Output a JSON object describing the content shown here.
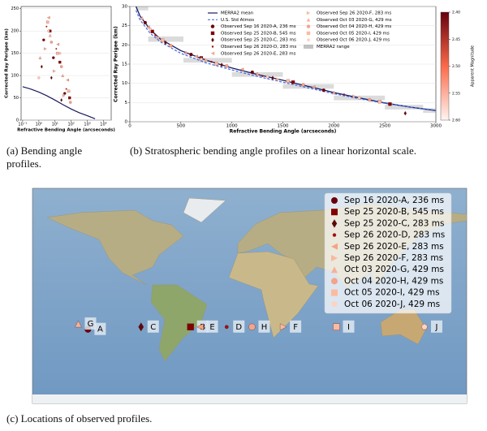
{
  "chart_data": [
    {
      "type": "line",
      "xscale": "log",
      "grid": true,
      "xlabel": "Refractive Bending Angle (arcseconds)",
      "ylabel": "Corrected Ray Perigee (km)",
      "xlim": [
        0.08,
        30000
      ],
      "ylim": [
        0,
        255
      ],
      "xticks": [
        {
          "value": 0.1,
          "label": "10⁻¹"
        },
        {
          "value": 1,
          "label": "10⁰"
        },
        {
          "value": 10,
          "label": "10¹"
        },
        {
          "value": 100,
          "label": "10²"
        },
        {
          "value": 1000,
          "label": "10³"
        },
        {
          "value": 10000,
          "label": "10⁴"
        }
      ],
      "yticks": [
        0,
        50,
        100,
        150,
        200,
        250
      ],
      "series": [
        {
          "kind": "line",
          "color": "#1a1a5e",
          "x": [
            0.1,
            0.3,
            1,
            3,
            10,
            30,
            100,
            300,
            1000,
            3000
          ],
          "values": [
            75,
            70,
            63,
            55,
            45,
            35,
            25,
            17,
            10,
            3
          ]
        },
        {
          "kind": "scatter",
          "marker": "circle",
          "color": "#67000d",
          "x": [
            2,
            8,
            40
          ],
          "values": [
            180,
            140,
            60
          ]
        },
        {
          "kind": "scatter",
          "marker": "square",
          "color": "#800000",
          "x": [
            5,
            20,
            80
          ],
          "values": [
            200,
            130,
            50
          ]
        },
        {
          "kind": "scatter",
          "marker": "diamond",
          "color": "#5c0a0a",
          "x": [
            1.5,
            6,
            25
          ],
          "values": [
            120,
            95,
            45
          ]
        },
        {
          "kind": "scatter",
          "marker": "point",
          "color": "#a01010",
          "x": [
            3,
            12,
            50
          ],
          "values": [
            210,
            160,
            70
          ]
        },
        {
          "kind": "scatter",
          "marker": "tri-left",
          "color": "#f4a582",
          "x": [
            4,
            15,
            60
          ],
          "values": [
            230,
            170,
            90
          ]
        },
        {
          "kind": "scatter",
          "marker": "tri-right",
          "color": "#f9b99d",
          "x": [
            2.5,
            9,
            35
          ],
          "values": [
            160,
            110,
            55
          ]
        },
        {
          "kind": "scatter",
          "marker": "tri-up",
          "color": "#f6b199",
          "x": [
            1.2,
            5,
            30
          ],
          "values": [
            140,
            190,
            100
          ]
        },
        {
          "kind": "scatter",
          "marker": "circle",
          "color": "#f3a48a",
          "x": [
            6,
            25,
            90
          ],
          "values": [
            175,
            120,
            40
          ]
        },
        {
          "kind": "scatter",
          "marker": "square",
          "color": "#fcbba1",
          "x": [
            3.5,
            14,
            70
          ],
          "values": [
            220,
            150,
            65
          ]
        },
        {
          "kind": "scatter",
          "marker": "pentagon",
          "color": "#fdd3c1",
          "x": [
            1,
            4,
            20
          ],
          "values": [
            95,
            200,
            150
          ]
        }
      ]
    },
    {
      "type": "line",
      "grid": true,
      "legend": "upper right",
      "xlabel": "Refractive Bending Angle (arcseconds)",
      "ylabel": "Corrected Ray Perigee (km)",
      "xlim": [
        0,
        3000
      ],
      "ylim": [
        0,
        30
      ],
      "xticks": [
        0,
        500,
        1000,
        1500,
        2000,
        2500,
        3000
      ],
      "yticks": [
        0,
        5,
        10,
        15,
        20,
        25,
        30
      ],
      "series": [
        {
          "name": "MERRA2 mean",
          "kind": "line",
          "color": "#1a1a5e",
          "x": [
            60,
            100,
            200,
            300,
            500,
            750,
            1000,
            1250,
            1500,
            1750,
            2000,
            2250,
            2500,
            2750,
            3000
          ],
          "values": [
            30,
            27.5,
            24,
            21.5,
            18.5,
            16,
            14,
            12.3,
            10.8,
            9.2,
            7.6,
            6.2,
            4.9,
            3.8,
            2.9
          ]
        },
        {
          "name": "U.S. Std Atmos",
          "kind": "line",
          "dash": true,
          "color": "#4a6fe3",
          "x": [
            60,
            100,
            200,
            300,
            500,
            750,
            1000,
            1250,
            1500,
            1750,
            2000,
            2250,
            2500,
            2750,
            3000
          ],
          "values": [
            29,
            26.5,
            23,
            20.8,
            17.8,
            15.3,
            13.5,
            11.8,
            10.3,
            8.8,
            7.3,
            6,
            4.8,
            3.8,
            3
          ]
        },
        {
          "name": "Observed Sep 16 2020-A, 236 ms",
          "kind": "scatter",
          "marker": "circle",
          "color": "#67000d",
          "x": [
            150,
            600,
            1200,
            1900
          ],
          "values": [
            25.8,
            17.5,
            12.9,
            8.2
          ]
        },
        {
          "name": "Observed Sep 25 2020-B, 545 ms",
          "kind": "scatter",
          "marker": "square",
          "color": "#800000",
          "x": [
            220,
            700,
            1600,
            2550
          ],
          "values": [
            23.5,
            16.6,
            10.3,
            4.6
          ]
        },
        {
          "name": "Observed Sep 25 2020-C, 283 ms",
          "kind": "scatter",
          "marker": "diamond",
          "color": "#5c0a0a",
          "x": [
            350,
            900,
            1400,
            2700
          ],
          "values": [
            20.6,
            14.8,
            11.4,
            2.2
          ]
        },
        {
          "name": "Observed Sep 26 2020-D, 283 ms",
          "kind": "scatter",
          "marker": "point",
          "color": "#a01010",
          "x": [
            250,
            800,
            1300,
            2100
          ],
          "values": [
            22.5,
            15.6,
            11.9,
            7.1
          ]
        },
        {
          "name": "Observed Sep 26 2020-E, 283 ms",
          "kind": "scatter",
          "marker": "tri-left",
          "color": "#f4a582",
          "x": [
            180,
            650,
            1100,
            1800
          ],
          "values": [
            24.6,
            17,
            13.6,
            9
          ]
        },
        {
          "name": "Observed Sep 26 2020-F, 283 ms",
          "kind": "scatter",
          "marker": "tri-right",
          "color": "#f9b99d",
          "x": [
            280,
            750,
            1450,
            2200
          ],
          "values": [
            21.9,
            16,
            11,
            6.6
          ]
        },
        {
          "name": "Observed Oct 03 2020-G, 429 ms",
          "kind": "scatter",
          "marker": "tri-up",
          "color": "#f6b199",
          "x": [
            120,
            550,
            1250,
            2000
          ],
          "values": [
            27,
            18,
            12.5,
            7.6
          ]
        },
        {
          "name": "Observed Oct 04 2020-H, 429 ms",
          "kind": "scatter",
          "marker": "circle",
          "color": "#f3a48a",
          "x": [
            400,
            950,
            1700,
            2350
          ],
          "values": [
            19.8,
            14.5,
            9.6,
            5.7
          ]
        },
        {
          "name": "Observed Oct 05 2020-I, 429 ms",
          "kind": "scatter",
          "marker": "square",
          "color": "#fcbba1",
          "x": [
            320,
            850,
            1550,
            2450
          ],
          "values": [
            21.2,
            15.1,
            10.6,
            5.2
          ]
        },
        {
          "name": "Observed Oct 06 2020-J, 429 ms",
          "kind": "scatter",
          "marker": "pentagon",
          "color": "#fdd3c1",
          "x": [
            200,
            700,
            1350,
            2250
          ],
          "values": [
            24.1,
            16.3,
            11.7,
            6.2
          ]
        },
        {
          "name": "MERRA2 range",
          "kind": "band",
          "color": "#999999",
          "x": [
            60,
            300,
            750,
            1250,
            1750,
            2250,
            2750,
            3000
          ],
          "lower": [
            29,
            20.8,
            15.4,
            11.7,
            8.6,
            5.6,
            3.2,
            2.3
          ],
          "upper": [
            30,
            22.2,
            16.6,
            12.9,
            9.8,
            6.8,
            4.4,
            3.5
          ]
        }
      ],
      "colorbar": {
        "title": "Apparent Magnitude",
        "colors": [
          "#67000d",
          "#fb6a4a",
          "#fff5f0"
        ],
        "lim": [
          2.4,
          2.6
        ],
        "ticks": [
          {
            "value": 2.4,
            "label": "2.40"
          },
          {
            "value": 2.45,
            "label": "2.45"
          },
          {
            "value": 2.5,
            "label": "2.50"
          },
          {
            "value": 2.55,
            "label": "2.55"
          },
          {
            "value": 2.6,
            "label": "2.60"
          }
        ]
      }
    }
  ],
  "captions": {
    "a": "(a) Bending angle profiles.",
    "b": "(b) Stratospheric bending angle profiles on a linear horizontal scale.",
    "c": "(c) Locations of observed profiles."
  },
  "map": {
    "points": [
      {
        "name": "Sep 16 2020-A, 236 ms",
        "label": "A",
        "lon": -134,
        "lat": -28,
        "marker": "circle",
        "color": "#67000d"
      },
      {
        "name": "Sep 25 2020-B, 545 ms",
        "label": "B",
        "lon": -49,
        "lat": -26,
        "marker": "square",
        "color": "#800000"
      },
      {
        "name": "Sep 25 2020-C, 283 ms",
        "label": "C",
        "lon": -90,
        "lat": -26,
        "marker": "diamond",
        "color": "#5c0a0a"
      },
      {
        "name": "Sep 26 2020-D, 283 ms",
        "label": "D",
        "lon": -19,
        "lat": -26,
        "marker": "point",
        "color": "#a01010"
      },
      {
        "name": "Sep 26 2020-E, 283 ms",
        "label": "E",
        "lon": -41,
        "lat": -26,
        "marker": "tri-left",
        "color": "#f4a582"
      },
      {
        "name": "Sep 26 2020-F, 283 ms",
        "label": "F",
        "lon": 28,
        "lat": -26,
        "marker": "tri-right",
        "color": "#f9b99d"
      },
      {
        "name": "Oct 03 2020-G, 429 ms",
        "label": "G",
        "lon": -142,
        "lat": -23.5,
        "marker": "tri-up",
        "color": "#f6b199"
      },
      {
        "name": "Oct 04 2020-H, 429 ms",
        "label": "H",
        "lon": 2,
        "lat": -26,
        "marker": "circle",
        "color": "#f3a48a"
      },
      {
        "name": "Oct 05 2020-I, 429 ms",
        "label": "I",
        "lon": 72,
        "lat": -26,
        "marker": "square",
        "color": "#fcbba1"
      },
      {
        "name": "Oct 06 2020-J, 429 ms",
        "label": "J",
        "lon": 145,
        "lat": -26,
        "marker": "pentagon",
        "color": "#fdd3c1"
      }
    ]
  }
}
